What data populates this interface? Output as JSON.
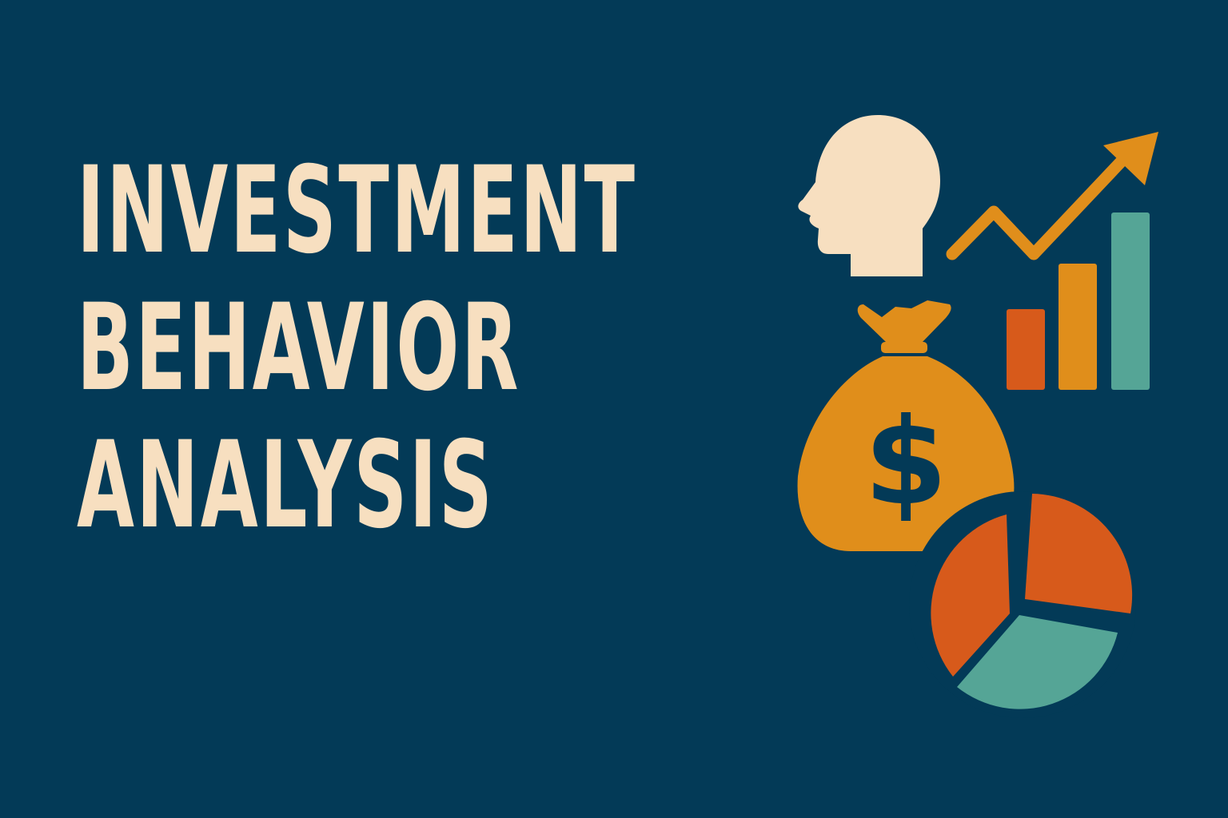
{
  "title": {
    "lines": [
      "INVESTMENT",
      "BEHAVIOR",
      "ANALYSIS"
    ]
  },
  "illustration": {
    "icons": [
      "head-silhouette-icon",
      "money-bag-icon",
      "trend-arrow-icon",
      "bar-chart-icon",
      "pie-chart-icon"
    ],
    "money_bag_symbol": "$"
  },
  "colors": {
    "background": "#033a57",
    "cream": "#f7dfc0",
    "amber": "#e08e1b",
    "orange_red": "#d75a1b",
    "teal": "#55a596"
  }
}
